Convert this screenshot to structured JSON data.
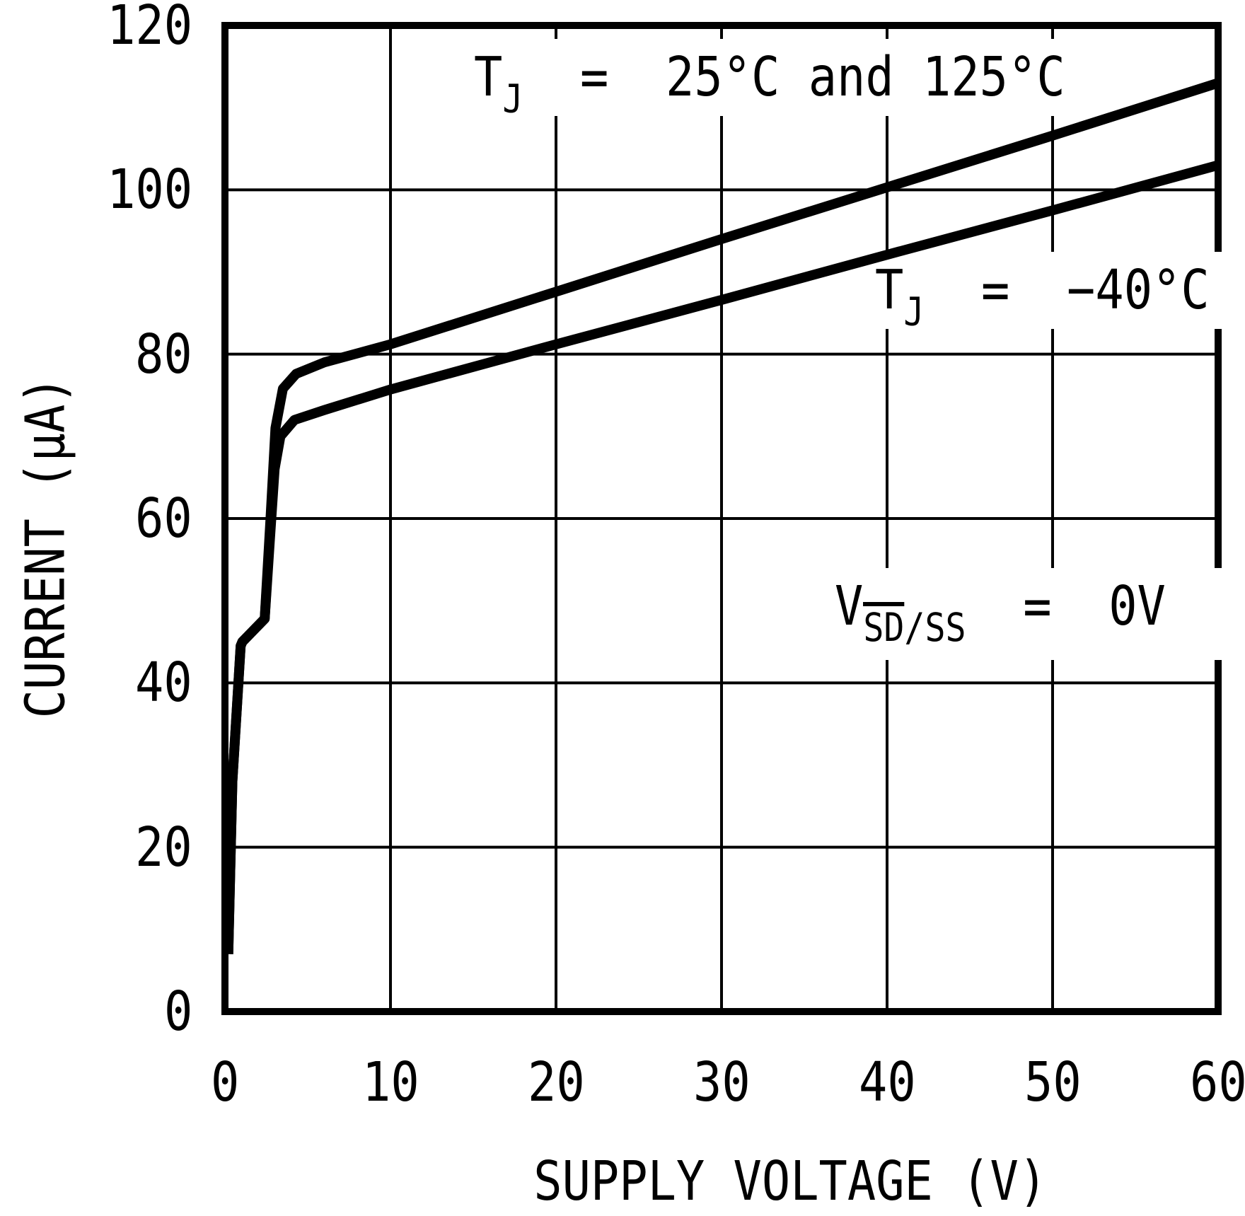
{
  "figure": {
    "background": "#ffffff",
    "ink": "#000000"
  },
  "chart_data": {
    "type": "line",
    "title": "",
    "xlabel": "SUPPLY VOLTAGE (V)",
    "ylabel": "CURRENT (μA)",
    "xlim": [
      0,
      60
    ],
    "ylim": [
      0,
      120
    ],
    "x_ticks": [
      0,
      10,
      20,
      30,
      40,
      50,
      60
    ],
    "y_ticks": [
      0,
      20,
      40,
      60,
      80,
      100,
      120
    ],
    "grid": true,
    "legend_position": "none",
    "series": [
      {
        "name": "TJ = 25°C and 125°C",
        "points": [
          [
            0.2,
            7
          ],
          [
            0.45,
            28
          ],
          [
            0.95,
            44.5
          ],
          [
            1.05,
            45
          ],
          [
            2.4,
            47.8
          ],
          [
            2.75,
            60
          ],
          [
            3.05,
            71
          ],
          [
            3.5,
            75.8
          ],
          [
            4.3,
            77.6
          ],
          [
            6,
            79
          ],
          [
            10,
            81.2
          ],
          [
            20,
            87.6
          ],
          [
            30,
            94
          ],
          [
            40,
            100.3
          ],
          [
            50,
            106.6
          ],
          [
            60,
            113
          ]
        ]
      },
      {
        "name": "TJ = −40°C",
        "points": [
          [
            0.2,
            7
          ],
          [
            0.45,
            28
          ],
          [
            0.95,
            44.5
          ],
          [
            1.05,
            45
          ],
          [
            2.4,
            47.8
          ],
          [
            2.7,
            57
          ],
          [
            3.0,
            66
          ],
          [
            3.35,
            70
          ],
          [
            4.2,
            72
          ],
          [
            6,
            73.2
          ],
          [
            10,
            75.7
          ],
          [
            20,
            81.2
          ],
          [
            30,
            86.6
          ],
          [
            40,
            92.1
          ],
          [
            50,
            97.5
          ],
          [
            60,
            103
          ]
        ]
      }
    ],
    "annotations": [
      {
        "main": "T",
        "sub": "J",
        "rest": "  =  25°C and 125°C"
      },
      {
        "main": "T",
        "sub": "J",
        "rest": "  =  −40°C"
      },
      {
        "main": "V",
        "sub_overline": "SD",
        "sub": "/SS",
        "rest": "  =  0V"
      }
    ]
  }
}
